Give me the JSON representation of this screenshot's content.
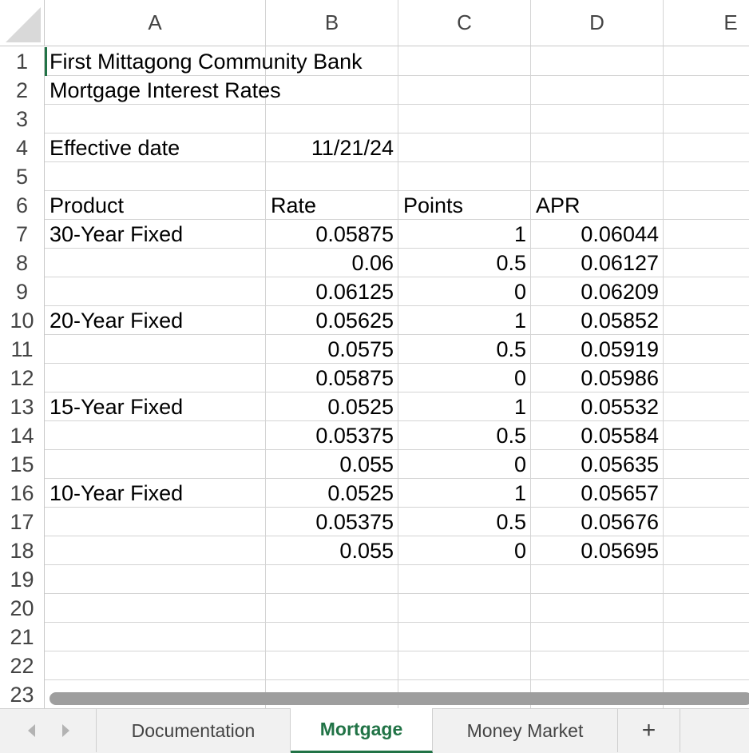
{
  "columns": [
    "A",
    "B",
    "C",
    "D",
    "E"
  ],
  "rows": [
    "1",
    "2",
    "3",
    "4",
    "5",
    "6",
    "7",
    "8",
    "9",
    "10",
    "11",
    "12",
    "13",
    "14",
    "15",
    "16",
    "17",
    "18",
    "19",
    "20",
    "21",
    "22",
    "23"
  ],
  "cells": {
    "A1": "First Mittagong Community Bank",
    "A2": "Mortgage Interest Rates",
    "A4": "Effective date",
    "B4": "11/21/24",
    "A6": "Product",
    "B6": "Rate",
    "C6": "Points",
    "D6": "APR",
    "A7": "30-Year Fixed",
    "B7": "0.05875",
    "C7": "1",
    "D7": "0.06044",
    "B8": "0.06",
    "C8": "0.5",
    "D8": "0.06127",
    "B9": "0.06125",
    "C9": "0",
    "D9": "0.06209",
    "A10": "20-Year Fixed",
    "B10": "0.05625",
    "C10": "1",
    "D10": "0.05852",
    "B11": "0.0575",
    "C11": "0.5",
    "D11": "0.05919",
    "B12": "0.05875",
    "C12": "0",
    "D12": "0.05986",
    "A13": "15-Year Fixed",
    "B13": "0.0525",
    "C13": "1",
    "D13": "0.05532",
    "B14": "0.05375",
    "C14": "0.5",
    "D14": "0.05584",
    "B15": "0.055",
    "C15": "0",
    "D15": "0.05635",
    "A16": "10-Year Fixed",
    "B16": "0.0525",
    "C16": "1",
    "D16": "0.05657",
    "B17": "0.05375",
    "C17": "0.5",
    "D17": "0.05676",
    "B18": "0.055",
    "C18": "0",
    "D18": "0.05695"
  },
  "sheet_tabs": {
    "tabs": [
      "Documentation",
      "Mortgage",
      "Money Market"
    ],
    "active": "Mortgage",
    "add_label": "+"
  },
  "icons": {
    "prev": "chevron-left-icon",
    "next": "chevron-right-icon"
  },
  "colors": {
    "accent": "#217346",
    "grid": "#d4d4d4",
    "header_text": "#444444",
    "scrollbar": "#9e9e9e"
  }
}
